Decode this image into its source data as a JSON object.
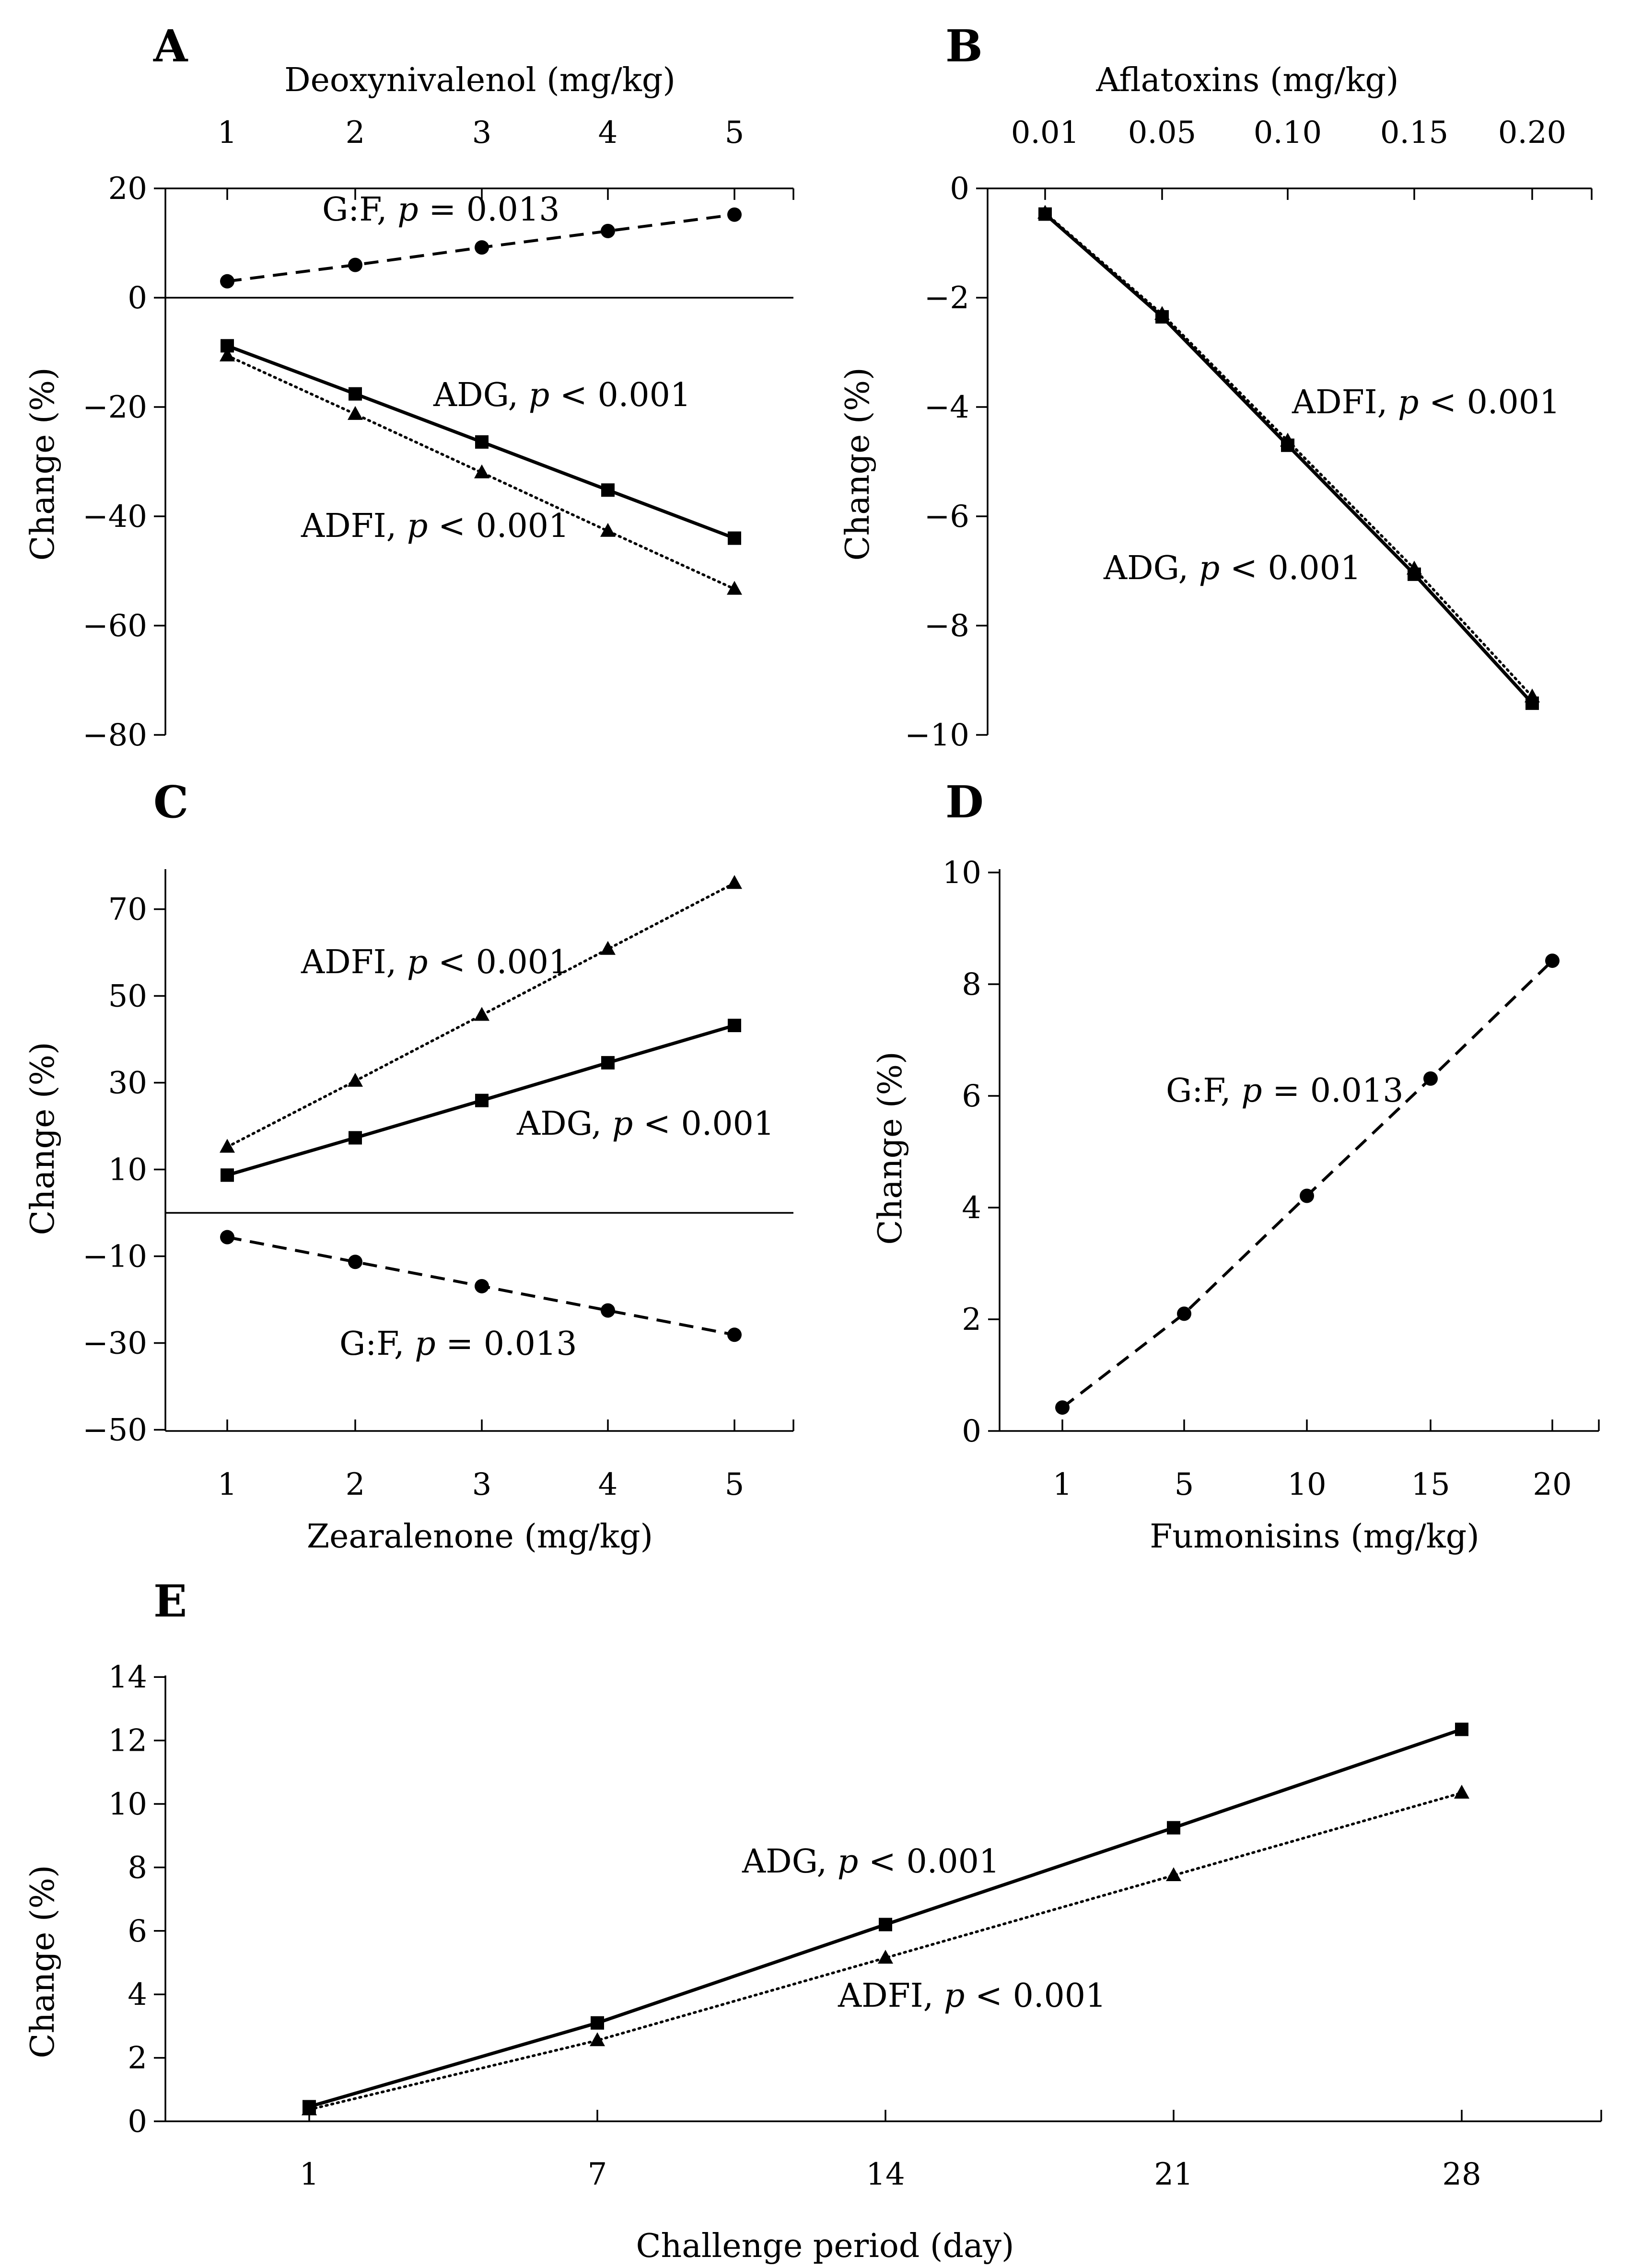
{
  "chart_data": [
    {
      "panel": "A",
      "type": "line",
      "top_axis_title": "Deoxynivalenol (mg/kg)",
      "ylabel": "Change (%)",
      "categories": [
        "1",
        "2",
        "3",
        "4",
        "5"
      ],
      "x": [
        1,
        2,
        3,
        4,
        5
      ],
      "ylim": [
        -80,
        20
      ],
      "yticks": [
        "20",
        "0",
        "−20",
        "−40",
        "−60",
        "−80"
      ],
      "ytick_values": [
        20,
        0,
        -20,
        -40,
        -60,
        -80
      ],
      "series": [
        {
          "name": "G:F",
          "label_main": "G:F, ",
          "label_p": "p",
          "label_rest": " = 0.013",
          "style": "dashed",
          "marker": "circle",
          "values": [
            3.0,
            6.0,
            9.2,
            12.2,
            15.2
          ]
        },
        {
          "name": "ADG",
          "label_main": "ADG, ",
          "label_p": "p",
          "label_rest": " < 0.001",
          "style": "solid",
          "marker": "square",
          "values": [
            -8.8,
            -17.6,
            -26.4,
            -35.2,
            -44.0
          ]
        },
        {
          "name": "ADFI",
          "label_main": "ADFI, ",
          "label_p": "p",
          "label_rest": " < 0.001",
          "style": "dotted",
          "marker": "triangle",
          "values": [
            -10.6,
            -21.3,
            -32.0,
            -42.7,
            -53.3
          ]
        }
      ]
    },
    {
      "panel": "B",
      "type": "line",
      "top_axis_title": "Aflatoxins (mg/kg)",
      "ylabel": "Change (%)",
      "categories": [
        "0.01",
        "0.05",
        "0.10",
        "0.15",
        "0.20"
      ],
      "x": [
        0.01,
        0.05,
        0.1,
        0.15,
        0.2
      ],
      "ylim": [
        -10,
        0
      ],
      "yticks": [
        "0",
        "−2",
        "−4",
        "−6",
        "−8",
        "−10"
      ],
      "ytick_values": [
        0,
        -2,
        -4,
        -6,
        -8,
        -10
      ],
      "series": [
        {
          "name": "ADFI",
          "label_main": "ADFI, ",
          "label_p": "p",
          "label_rest": " < 0.001",
          "style": "dotted",
          "marker": "triangle",
          "values": [
            -0.45,
            -2.3,
            -4.62,
            -6.96,
            -9.3
          ]
        },
        {
          "name": "ADG",
          "label_main": "ADG, ",
          "label_p": "p",
          "label_rest": " < 0.001",
          "style": "solid",
          "marker": "square",
          "values": [
            -0.47,
            -2.35,
            -4.7,
            -7.06,
            -9.42
          ]
        }
      ]
    },
    {
      "panel": "C",
      "type": "line",
      "xlabel": "Zearalenone (mg/kg)",
      "ylabel": "Change (%)",
      "categories": [
        "1",
        "2",
        "3",
        "4",
        "5"
      ],
      "x": [
        1,
        2,
        3,
        4,
        5
      ],
      "ylim": [
        -50,
        80
      ],
      "yticks": [
        "70",
        "50",
        "30",
        "10",
        "−10",
        "−30",
        "−50"
      ],
      "ytick_values": [
        70,
        50,
        30,
        10,
        -10,
        -30,
        -50
      ],
      "series": [
        {
          "name": "ADFI",
          "label_main": "ADFI, ",
          "label_p": "p",
          "label_rest": " < 0.001",
          "style": "dotted",
          "marker": "triangle",
          "values": [
            15.2,
            30.4,
            45.6,
            60.8,
            76.0
          ]
        },
        {
          "name": "ADG",
          "label_main": "ADG, ",
          "label_p": "p",
          "label_rest": " < 0.001",
          "style": "solid",
          "marker": "square",
          "values": [
            8.7,
            17.3,
            25.9,
            34.6,
            43.2
          ]
        },
        {
          "name": "G:F",
          "label_main": "G:F, ",
          "label_p": "p",
          "label_rest": " = 0.013",
          "style": "dashed",
          "marker": "circle",
          "values": [
            -5.6,
            -11.3,
            -16.9,
            -22.5,
            -28.1
          ]
        }
      ]
    },
    {
      "panel": "D",
      "type": "line",
      "xlabel": "Fumonisins (mg/kg)",
      "ylabel": "Change (%)",
      "categories": [
        "1",
        "5",
        "10",
        "15",
        "20"
      ],
      "x": [
        1,
        5,
        10,
        15,
        20
      ],
      "ylim": [
        0,
        10
      ],
      "yticks": [
        "10",
        "8",
        "6",
        "4",
        "2",
        "0"
      ],
      "ytick_values": [
        10,
        8,
        6,
        4,
        2,
        0
      ],
      "series": [
        {
          "name": "G:F",
          "label_main": "G:F, ",
          "label_p": "p",
          "label_rest": " = 0.013",
          "style": "dashed",
          "marker": "circle",
          "values": [
            0.42,
            2.1,
            4.21,
            6.31,
            8.42
          ]
        }
      ]
    },
    {
      "panel": "E",
      "type": "line",
      "xlabel": "Challenge period (day)",
      "ylabel": "Change (%)",
      "categories": [
        "1",
        "7",
        "14",
        "21",
        "28"
      ],
      "x": [
        1,
        7,
        14,
        21,
        28
      ],
      "ylim": [
        0,
        14
      ],
      "yticks": [
        "14",
        "12",
        "10",
        "8",
        "6",
        "4",
        "2",
        "0"
      ],
      "ytick_values": [
        14,
        12,
        10,
        8,
        6,
        4,
        2,
        0
      ],
      "series": [
        {
          "name": "ADG",
          "label_main": "ADG, ",
          "label_p": "p",
          "label_rest": " < 0.001",
          "style": "solid",
          "marker": "square",
          "values": [
            0.46,
            3.1,
            6.2,
            9.25,
            12.35
          ]
        },
        {
          "name": "ADFI",
          "label_main": "ADFI, ",
          "label_p": "p",
          "label_rest": " < 0.001",
          "style": "dotted",
          "marker": "triangle",
          "values": [
            0.37,
            2.55,
            5.15,
            7.75,
            10.35
          ]
        }
      ]
    }
  ]
}
